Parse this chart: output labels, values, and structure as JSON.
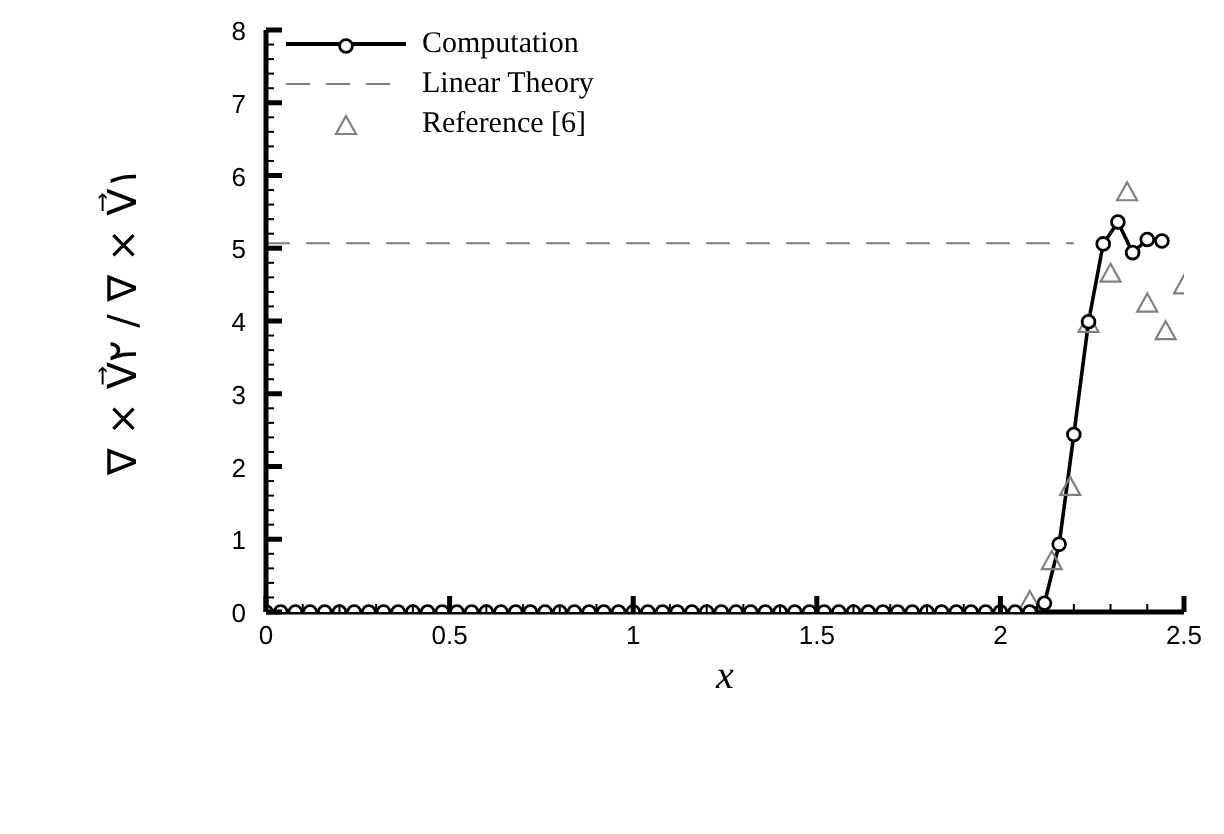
{
  "chart_data": {
    "type": "line",
    "xlabel": "x",
    "ylabel": "∇ × V⃗۲ / ∇ × V⃗۱",
    "xlim": [
      0,
      2.5
    ],
    "xticks": [
      0,
      {
        "value": 0.1,
        "label": null
      },
      {
        "value": 0.2,
        "label": null
      },
      {
        "value": 0.3,
        "label": null
      },
      {
        "value": 0.4,
        "label": null
      },
      0.5,
      {
        "value": 0.6,
        "label": null
      },
      {
        "value": 0.7,
        "label": null
      },
      {
        "value": 0.8,
        "label": null
      },
      {
        "value": 0.9,
        "label": null
      },
      1,
      {
        "value": 1.1,
        "label": null
      },
      {
        "value": 1.2,
        "label": null
      },
      {
        "value": 1.3,
        "label": null
      },
      {
        "value": 1.4,
        "label": null
      },
      1.5,
      {
        "value": 1.6,
        "label": null
      },
      {
        "value": 1.7,
        "label": null
      },
      {
        "value": 1.8,
        "label": null
      },
      {
        "value": 1.9,
        "label": null
      },
      2,
      {
        "value": 2.1,
        "label": null
      },
      {
        "value": 2.2,
        "label": null
      },
      {
        "value": 2.3,
        "label": null
      },
      {
        "value": 2.4,
        "label": null
      },
      2.5
    ],
    "ylim": [
      0,
      8
    ],
    "yticks": [
      0,
      {
        "value": 0.2,
        "label": null
      },
      {
        "value": 0.4,
        "label": null
      },
      {
        "value": 0.6,
        "label": null
      },
      {
        "value": 0.8,
        "label": null
      },
      1,
      {
        "value": 1.2,
        "label": null
      },
      {
        "value": 1.4,
        "label": null
      },
      {
        "value": 1.6,
        "label": null
      },
      {
        "value": 1.8,
        "label": null
      },
      2,
      {
        "value": 2.2,
        "label": null
      },
      {
        "value": 2.4,
        "label": null
      },
      {
        "value": 2.6,
        "label": null
      },
      {
        "value": 2.8,
        "label": null
      },
      3,
      {
        "value": 3.2,
        "label": null
      },
      {
        "value": 3.4,
        "label": null
      },
      {
        "value": 3.6,
        "label": null
      },
      {
        "value": 3.8,
        "label": null
      },
      4,
      {
        "value": 4.2,
        "label": null
      },
      {
        "value": 4.4,
        "label": null
      },
      {
        "value": 4.6,
        "label": null
      },
      {
        "value": 4.8,
        "label": null
      },
      5,
      {
        "value": 5.2,
        "label": null
      },
      {
        "value": 5.4,
        "label": null
      },
      {
        "value": 5.6,
        "label": null
      },
      {
        "value": 5.8,
        "label": null
      },
      6,
      {
        "value": 6.2,
        "label": null
      },
      {
        "value": 6.4,
        "label": null
      },
      {
        "value": 6.6,
        "label": null
      },
      {
        "value": 6.8,
        "label": null
      },
      7,
      {
        "value": 7.2,
        "label": null
      },
      {
        "value": 7.4,
        "label": null
      },
      {
        "value": 7.6,
        "label": null
      },
      {
        "value": 7.8,
        "label": null
      },
      8
    ],
    "grid": false,
    "legend": "top left",
    "series": [
      {
        "name": "Computation",
        "marker": "circle",
        "line_style": "solid",
        "color": "#000000",
        "x": [
          0,
          0.04,
          0.08,
          0.12,
          0.16,
          0.2,
          0.24,
          0.28,
          0.32,
          0.36,
          0.4,
          0.44,
          0.48,
          0.52,
          0.56,
          0.6,
          0.64,
          0.68,
          0.72,
          0.76,
          0.8,
          0.84,
          0.88,
          0.92,
          0.96,
          1,
          1.04,
          1.08,
          1.12,
          1.16,
          1.2,
          1.24,
          1.28,
          1.32,
          1.36,
          1.4,
          1.44,
          1.48,
          1.52,
          1.56,
          1.6,
          1.64,
          1.68,
          1.72,
          1.76,
          1.8,
          1.84,
          1.88,
          1.92,
          1.96,
          2,
          2.04,
          2.08,
          2.12,
          2.16,
          2.2,
          2.24,
          2.28,
          2.32,
          2.36,
          2.4,
          2.44
        ],
        "values": [
          0,
          0,
          0,
          0,
          0,
          0,
          0,
          0,
          0,
          0,
          0,
          0,
          0,
          0,
          0,
          0,
          0,
          0,
          0,
          0,
          0,
          0,
          0,
          0,
          0,
          0,
          0,
          0,
          0,
          0,
          0,
          0,
          0,
          0,
          0,
          0,
          0,
          0,
          0,
          0,
          0,
          0,
          0,
          0,
          0,
          0,
          0,
          0,
          0,
          0,
          0,
          0,
          0,
          0.12,
          0.93,
          2.44,
          3.99,
          5.06,
          5.36,
          4.94,
          5.12,
          5.1
        ]
      },
      {
        "name": "Linear Theory",
        "marker": "none",
        "line_style": "dashed",
        "color": "#808080",
        "x": [
          0,
          2.2
        ],
        "values": [
          5.07,
          5.07
        ]
      },
      {
        "name": "Reference [6]",
        "type": "scatter",
        "marker": "triangle",
        "color": "#808080",
        "x": [
          2.08,
          2.14,
          2.19,
          2.24,
          2.3,
          2.345,
          2.4,
          2.45,
          2.5
        ],
        "values": [
          0.15,
          0.7,
          1.72,
          3.96,
          4.65,
          5.77,
          4.24,
          3.86,
          4.49
        ]
      }
    ]
  }
}
